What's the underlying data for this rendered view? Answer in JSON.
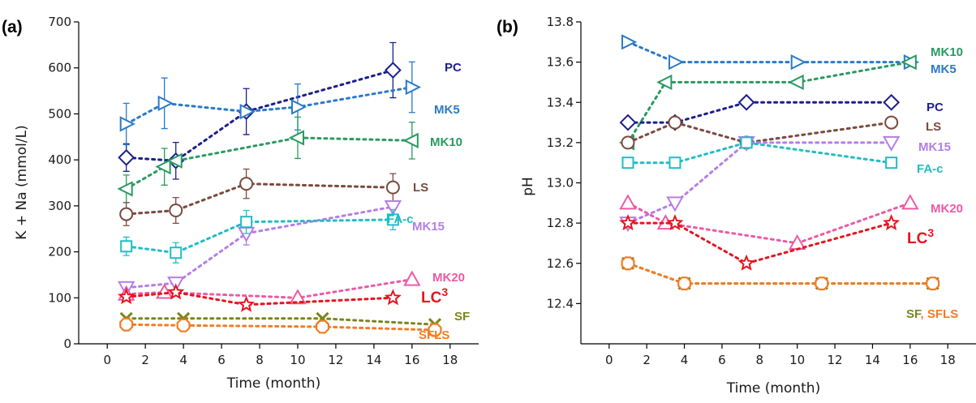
{
  "chart_data": [
    {
      "type": "scatter",
      "panel_label": "(a)",
      "xlabel": "Time (month)",
      "ylabel": "K + Na (mmol/L)",
      "xlim": [
        -1.5,
        19.5
      ],
      "ylim": [
        0,
        700
      ],
      "xticks": [
        0,
        2,
        4,
        6,
        8,
        10,
        12,
        14,
        16,
        18
      ],
      "yticks": [
        0,
        100,
        200,
        300,
        400,
        500,
        600,
        700
      ],
      "series": [
        {
          "name": "PC",
          "label_text": "PC",
          "color": "#1c1f8c",
          "marker": "diamond",
          "x": [
            1,
            3.6,
            7.3,
            15
          ],
          "y": [
            405,
            398,
            505,
            595
          ],
          "err": [
            30,
            40,
            50,
            60
          ]
        },
        {
          "name": "MK5",
          "label_text": "MK5",
          "color": "#2a7ac8",
          "marker": "triangle-right",
          "x": [
            1,
            3,
            7.3,
            10,
            16
          ],
          "y": [
            478,
            523,
            505,
            515,
            558
          ],
          "err": [
            45,
            55,
            0,
            50,
            55
          ]
        },
        {
          "name": "MK10",
          "label_text": "MK10",
          "color": "#2a9a62",
          "marker": "triangle-left",
          "x": [
            1,
            3,
            3.6,
            10,
            16
          ],
          "y": [
            337,
            385,
            398,
            448,
            442
          ],
          "err": [
            30,
            40,
            0,
            45,
            40
          ]
        },
        {
          "name": "LS",
          "label_text": "LS",
          "color": "#7a4a3e",
          "marker": "circle",
          "x": [
            1,
            3.6,
            7.3,
            15
          ],
          "y": [
            282,
            290,
            348,
            340
          ],
          "err": [
            25,
            28,
            32,
            30
          ]
        },
        {
          "name": "MK15",
          "label_text": "MK15",
          "color": "#b47ee6",
          "marker": "triangle-down",
          "x": [
            1,
            3.6,
            7.3,
            15
          ],
          "y": [
            122,
            132,
            240,
            298
          ],
          "err": [
            0,
            0,
            25,
            0
          ]
        },
        {
          "name": "FA-c",
          "label_text": "FA-c",
          "color": "#22bcc6",
          "marker": "square",
          "x": [
            1,
            3.6,
            7.3,
            15
          ],
          "y": [
            212,
            198,
            265,
            270
          ],
          "err": [
            20,
            22,
            25,
            22
          ]
        },
        {
          "name": "MK20",
          "label_text": "MK20",
          "color": "#ec5aa4",
          "marker": "triangle-up",
          "x": [
            1,
            3,
            10,
            16
          ],
          "y": [
            108,
            112,
            100,
            140
          ],
          "err": [
            0,
            0,
            0,
            0
          ]
        },
        {
          "name": "LC3",
          "label_text": "LC",
          "label_sup": "3",
          "color": "#e6141e",
          "marker": "star",
          "x": [
            1,
            3.6,
            7.3,
            15
          ],
          "y": [
            102,
            112,
            85,
            100
          ],
          "err": [
            0,
            0,
            0,
            0
          ]
        },
        {
          "name": "SF",
          "label_text": "SF",
          "color": "#7a861a",
          "marker": "x",
          "x": [
            1,
            4,
            11.3,
            17.2
          ],
          "y": [
            55,
            55,
            55,
            42
          ],
          "err": [
            0,
            0,
            0,
            0
          ]
        },
        {
          "name": "SFLS",
          "label_text": "SFLS",
          "color": "#f27c24",
          "marker": "octagon",
          "x": [
            1,
            4,
            11.3,
            17.2
          ],
          "y": [
            42,
            40,
            37,
            30
          ],
          "err": [
            0,
            0,
            0,
            0
          ]
        }
      ]
    },
    {
      "type": "scatter",
      "panel_label": "(b)",
      "xlabel": "Time (month)",
      "ylabel": "pH",
      "xlim": [
        -1.5,
        19.5
      ],
      "ylim": [
        12.2,
        13.8
      ],
      "xticks": [
        0,
        2,
        4,
        6,
        8,
        10,
        12,
        14,
        16,
        18
      ],
      "yticks": [
        12.4,
        12.6,
        12.8,
        13.0,
        13.2,
        13.4,
        13.6,
        13.8
      ],
      "series": [
        {
          "name": "MK5",
          "label_text": "MK5",
          "color": "#2a7ac8",
          "marker": "triangle-right",
          "x": [
            1,
            3.5,
            10,
            16
          ],
          "y": [
            13.7,
            13.6,
            13.6,
            13.6
          ]
        },
        {
          "name": "MK10",
          "label_text": "MK10",
          "color": "#2a9a62",
          "marker": "triangle-left",
          "x": [
            1,
            3,
            10,
            16
          ],
          "y": [
            13.2,
            13.5,
            13.5,
            13.6
          ]
        },
        {
          "name": "PC",
          "label_text": "PC",
          "color": "#1c1f8c",
          "marker": "diamond",
          "x": [
            1,
            3.5,
            7.3,
            15
          ],
          "y": [
            13.3,
            13.3,
            13.4,
            13.4
          ]
        },
        {
          "name": "LS",
          "label_text": "LS",
          "color": "#7a4a3e",
          "marker": "circle",
          "x": [
            1,
            3.5,
            7.3,
            15
          ],
          "y": [
            13.2,
            13.3,
            13.2,
            13.3
          ]
        },
        {
          "name": "MK15",
          "label_text": "MK15",
          "color": "#b47ee6",
          "marker": "triangle-down",
          "x": [
            1,
            3.5,
            7.3,
            15
          ],
          "y": [
            12.8,
            12.9,
            13.2,
            13.2
          ]
        },
        {
          "name": "FA-c",
          "label_text": "FA-c",
          "color": "#22bcc6",
          "marker": "square",
          "x": [
            1,
            3.5,
            7.3,
            15
          ],
          "y": [
            13.1,
            13.1,
            13.2,
            13.1
          ]
        },
        {
          "name": "MK20",
          "label_text": "MK20",
          "color": "#ec5aa4",
          "marker": "triangle-up",
          "x": [
            1,
            3,
            10,
            16
          ],
          "y": [
            12.9,
            12.8,
            12.7,
            12.9
          ]
        },
        {
          "name": "LC3",
          "label_text": "LC",
          "label_sup": "3",
          "color": "#e6141e",
          "marker": "star",
          "x": [
            1,
            3.5,
            7.3,
            15
          ],
          "y": [
            12.8,
            12.8,
            12.6,
            12.8
          ]
        },
        {
          "name": "SF",
          "label_text": "SF",
          "color": "#7a861a",
          "marker": "x",
          "x": [
            1,
            4,
            11.3,
            17.2
          ],
          "y": [
            12.6,
            12.5,
            12.5,
            12.5
          ]
        },
        {
          "name": "SFLS",
          "label_text": "SFLS",
          "color": "#f27c24",
          "marker": "octagon",
          "x": [
            1,
            4,
            11.3,
            17.2
          ],
          "y": [
            12.6,
            12.5,
            12.5,
            12.5
          ]
        }
      ]
    }
  ],
  "panel_b_shared_label": {
    "sf": "SF",
    "sep": ", ",
    "sfls": "SFLS"
  }
}
